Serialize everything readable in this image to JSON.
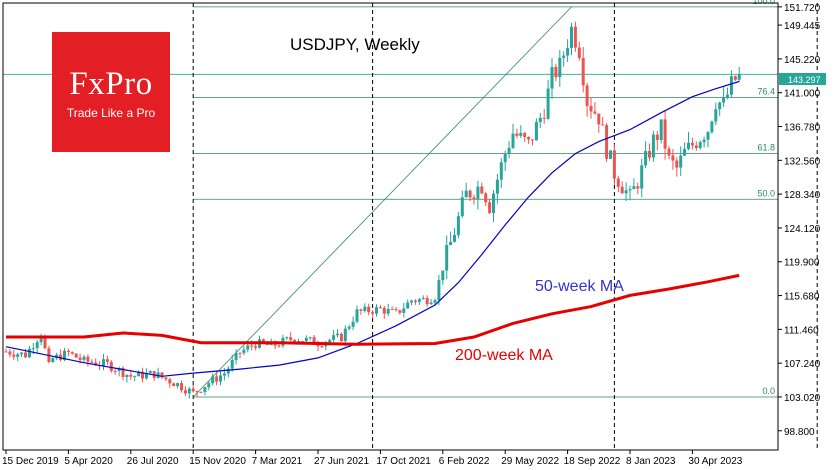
{
  "branding": {
    "name": "FxPro",
    "tagline": "Trade Like a Pro"
  },
  "chart_data": {
    "type": "candlestick",
    "title": "USDJPY, Weekly",
    "price_ylim": [
      96.4,
      152.2
    ],
    "y_ticks": [
      "151.720",
      "149.445",
      "145.220",
      "141.000",
      "136.780",
      "132.560",
      "128.340",
      "124.120",
      "119.900",
      "115.680",
      "111.460",
      "107.240",
      "103.020",
      "98.800"
    ],
    "y_tick_values": [
      151.72,
      149.445,
      145.22,
      141.0,
      136.78,
      132.56,
      128.34,
      124.12,
      119.9,
      115.68,
      111.46,
      107.24,
      103.02,
      98.8
    ],
    "x_ticks": [
      "15 Dec 2019",
      "5 Apr 2020",
      "26 Jul 2020",
      "15 Nov 2020",
      "7 Mar 2021",
      "27 Jun 2021",
      "17 Oct 2021",
      "6 Feb 2022",
      "29 May 2022",
      "18 Sep 2022",
      "8 Jan 2023",
      "30 Apr 2023"
    ],
    "current_price": {
      "label": "143.297",
      "value": 143.297
    },
    "fibonacci": [
      {
        "label": "100.0",
        "value": 151.72
      },
      {
        "label": "76.4",
        "value": 140.4
      },
      {
        "label": "61.8",
        "value": 133.4
      },
      {
        "label": "50.0",
        "value": 127.7
      },
      {
        "label": "0.0",
        "value": 103.02
      }
    ],
    "vertical_markers_week": [
      48,
      94,
      156,
      208
    ],
    "trendline": {
      "from": {
        "week": 48,
        "price": 103.02
      },
      "to": {
        "week": 145,
        "price": 151.72
      }
    },
    "anchors": [
      [
        0,
        108.7
      ],
      [
        5,
        108.3
      ],
      [
        9,
        111.0
      ],
      [
        11,
        106.8
      ],
      [
        12,
        107.8
      ],
      [
        16,
        108.5
      ],
      [
        20,
        107.5
      ],
      [
        26,
        107.1
      ],
      [
        32,
        105.6
      ],
      [
        38,
        105.9
      ],
      [
        44,
        104.6
      ],
      [
        48,
        103.5
      ],
      [
        52,
        104.8
      ],
      [
        56,
        106.0
      ],
      [
        60,
        108.6
      ],
      [
        64,
        109.7
      ],
      [
        68,
        109.4
      ],
      [
        74,
        110.4
      ],
      [
        80,
        109.8
      ],
      [
        86,
        110.5
      ],
      [
        90,
        113.6
      ],
      [
        96,
        114.0
      ],
      [
        100,
        113.4
      ],
      [
        104,
        115.1
      ],
      [
        108,
        115.2
      ],
      [
        110,
        115.6
      ],
      [
        112,
        119.2
      ],
      [
        114,
        122.2
      ],
      [
        118,
        128.3
      ],
      [
        122,
        129.5
      ],
      [
        124,
        127.0
      ],
      [
        128,
        133.5
      ],
      [
        130,
        136.0
      ],
      [
        134,
        134.5
      ],
      [
        138,
        139.0
      ],
      [
        140,
        143.0
      ],
      [
        142,
        144.3
      ],
      [
        145,
        149.0
      ],
      [
        147,
        146.4
      ],
      [
        149,
        140.0
      ],
      [
        152,
        138.0
      ],
      [
        154,
        134.0
      ],
      [
        156,
        131.0
      ],
      [
        158,
        129.5
      ],
      [
        160,
        127.8
      ],
      [
        162,
        130.0
      ],
      [
        164,
        132.5
      ],
      [
        166,
        135.0
      ],
      [
        168,
        136.5
      ],
      [
        170,
        132.5
      ],
      [
        172,
        131.5
      ],
      [
        174,
        133.5
      ],
      [
        176,
        134.5
      ],
      [
        178,
        135.5
      ],
      [
        180,
        136.5
      ],
      [
        182,
        140.0
      ],
      [
        184,
        139.5
      ],
      [
        186,
        142.0
      ],
      [
        188,
        143.3
      ]
    ],
    "ma50": {
      "label": "50-week MA",
      "color": "#0000cc",
      "points": [
        [
          0,
          109.3
        ],
        [
          20,
          107.3
        ],
        [
          40,
          105.6
        ],
        [
          48,
          106.0
        ],
        [
          60,
          106.5
        ],
        [
          70,
          107.0
        ],
        [
          80,
          107.9
        ],
        [
          90,
          109.7
        ],
        [
          100,
          111.9
        ],
        [
          110,
          114.5
        ],
        [
          116,
          117.3
        ],
        [
          122,
          120.8
        ],
        [
          128,
          124.5
        ],
        [
          134,
          128.0
        ],
        [
          140,
          131.0
        ],
        [
          146,
          133.4
        ],
        [
          152,
          134.9
        ],
        [
          160,
          136.4
        ],
        [
          168,
          138.5
        ],
        [
          176,
          140.5
        ],
        [
          182,
          141.5
        ],
        [
          188,
          142.4
        ]
      ]
    },
    "ma200": {
      "label": "200-week MA",
      "color": "#e60000",
      "points": [
        [
          0,
          110.5
        ],
        [
          20,
          110.5
        ],
        [
          30,
          111.0
        ],
        [
          40,
          110.7
        ],
        [
          50,
          109.8
        ],
        [
          70,
          109.8
        ],
        [
          90,
          109.6
        ],
        [
          110,
          109.7
        ],
        [
          120,
          110.5
        ],
        [
          130,
          112.2
        ],
        [
          140,
          113.4
        ],
        [
          150,
          114.3
        ],
        [
          160,
          115.7
        ],
        [
          170,
          116.5
        ],
        [
          180,
          117.4
        ],
        [
          188,
          118.2
        ]
      ]
    }
  }
}
